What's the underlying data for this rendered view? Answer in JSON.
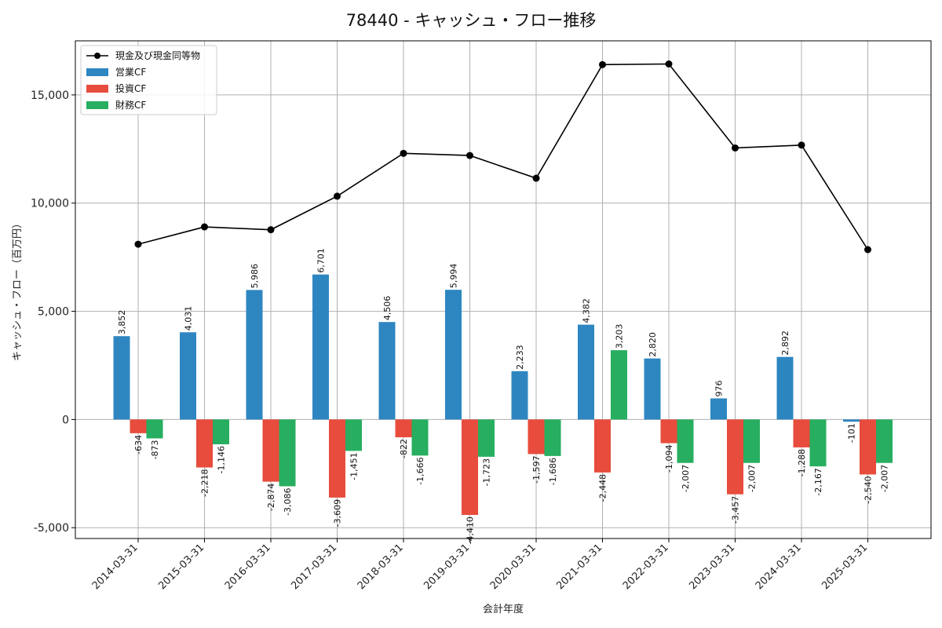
{
  "chart_data": {
    "type": "bar",
    "title": "78440 - キャッシュ・フロー推移",
    "xlabel": "会計年度",
    "ylabel": "キャッシュ・フロー（百万円）",
    "ylim": [
      -5500,
      17500
    ],
    "yticks": [
      -5000,
      0,
      5000,
      10000,
      15000
    ],
    "ytick_labels": [
      "-5,000",
      "0",
      "5,000",
      "10,000",
      "15,000"
    ],
    "categories": [
      "2014-03-31",
      "2015-03-31",
      "2016-03-31",
      "2017-03-31",
      "2018-03-31",
      "2019-03-31",
      "2020-03-31",
      "2021-03-31",
      "2022-03-31",
      "2023-03-31",
      "2024-03-31",
      "2025-03-31"
    ],
    "grid": true,
    "legend_position": "top-left",
    "series": [
      {
        "name": "営業CF",
        "kind": "bar",
        "color": "#2e86c1",
        "values": [
          3852,
          4031,
          5986,
          6701,
          4506,
          5994,
          2233,
          4382,
          2820,
          976,
          2892,
          -101
        ],
        "labels": [
          "3,852",
          "4,031",
          "5,986",
          "6,701",
          "4,506",
          "5,994",
          "2,233",
          "4,382",
          "2,820",
          "976",
          "2,892",
          "-101"
        ]
      },
      {
        "name": "投資CF",
        "kind": "bar",
        "color": "#e74c3c",
        "values": [
          -634,
          -2218,
          -2874,
          -3609,
          -822,
          -4410,
          -1597,
          -2448,
          -1094,
          -3457,
          -1288,
          -2540
        ],
        "labels": [
          "-634",
          "-2,218",
          "-2,874",
          "-3,609",
          "-822",
          "-4,410",
          "-1,597",
          "-2,448",
          "-1,094",
          "-3,457",
          "-1,288",
          "-2,540"
        ]
      },
      {
        "name": "財務CF",
        "kind": "bar",
        "color": "#27ae60",
        "values": [
          -873,
          -1146,
          -3086,
          -1451,
          -1666,
          -1723,
          -1686,
          3203,
          -2007,
          -2007,
          -2167,
          -2007
        ],
        "labels": [
          "-873",
          "-1,146",
          "-3,086",
          "-1,451",
          "-1,666",
          "-1,723",
          "-1,686",
          "3,203",
          "-2,007",
          "-2,007",
          "-2,167",
          "-2,007"
        ]
      },
      {
        "name": "現金及び現金同等物",
        "kind": "line",
        "color": "#000000",
        "values": [
          8100,
          8900,
          8770,
          10320,
          12300,
          12200,
          11150,
          16400,
          16430,
          12550,
          12680,
          7850
        ]
      }
    ],
    "legend_order": [
      "現金及び現金同等物",
      "営業CF",
      "投資CF",
      "財務CF"
    ]
  }
}
